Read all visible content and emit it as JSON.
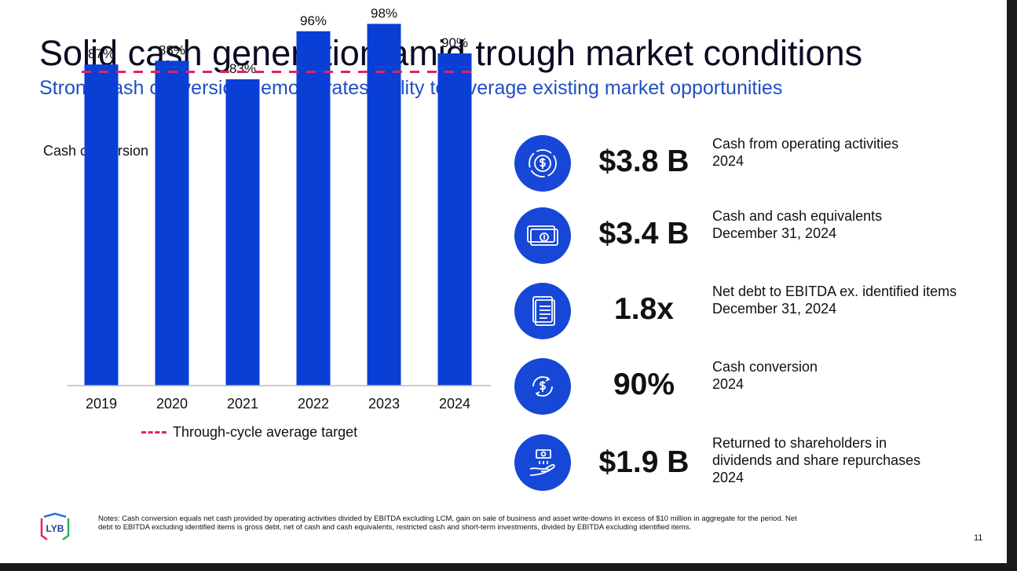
{
  "title": "Solid cash generation amid trough market conditions",
  "subtitle": "Strong cash conversion demonstrates ability to leverage existing market opportunities",
  "chart_data": {
    "type": "bar",
    "title": "Cash conversion",
    "categories": [
      "2019",
      "2020",
      "2021",
      "2022",
      "2023",
      "2024"
    ],
    "values": [
      87,
      88,
      83,
      96,
      98,
      90
    ],
    "value_labels": [
      "87%",
      "88%",
      "83%",
      "96%",
      "98%",
      "90%"
    ],
    "unit": "%",
    "target_line": {
      "name": "Through-cycle average target",
      "value": 85,
      "color": "#e0245e",
      "style": "dashed"
    },
    "ylim": [
      0,
      100
    ],
    "bar_color": "#0a3fd6",
    "grid": false,
    "legend": "bottom"
  },
  "metrics": [
    {
      "icon": "gear-dollar-icon",
      "value": "$3.8 B",
      "desc": [
        "Cash from operating activities",
        "2024"
      ]
    },
    {
      "icon": "cash-stack-icon",
      "value": "$3.4 B",
      "desc": [
        "Cash and cash equivalents",
        "December 31, 2024"
      ]
    },
    {
      "icon": "document-icon",
      "value": "1.8x",
      "desc": [
        "Net debt to EBITDA ex. identified items",
        "December 31, 2024"
      ]
    },
    {
      "icon": "cycle-dollar-icon",
      "value": "90%",
      "desc": [
        "Cash conversion",
        "2024"
      ]
    },
    {
      "icon": "hand-cash-icon",
      "value": "$1.9 B",
      "desc": [
        "Returned to shareholders in",
        "dividends and share repurchases",
        "2024"
      ]
    }
  ],
  "logo_text": "LYB",
  "notes": "Notes: Cash conversion equals net cash provided by operating activities divided by EBITDA excluding LCM, gain on sale of business and asset write-downs in excess of $10 million in aggregate for the period. Net debt to EBITDA excluding identified items is gross debt, net of cash and cash equivalents, restricted cash and short-term investments, divided by EBITDA excluding identified items.",
  "page_number": "11",
  "colors": {
    "accent": "#1747d6",
    "title": "#0a0a23",
    "subtitle": "#1f4fc4",
    "target": "#e0245e"
  }
}
